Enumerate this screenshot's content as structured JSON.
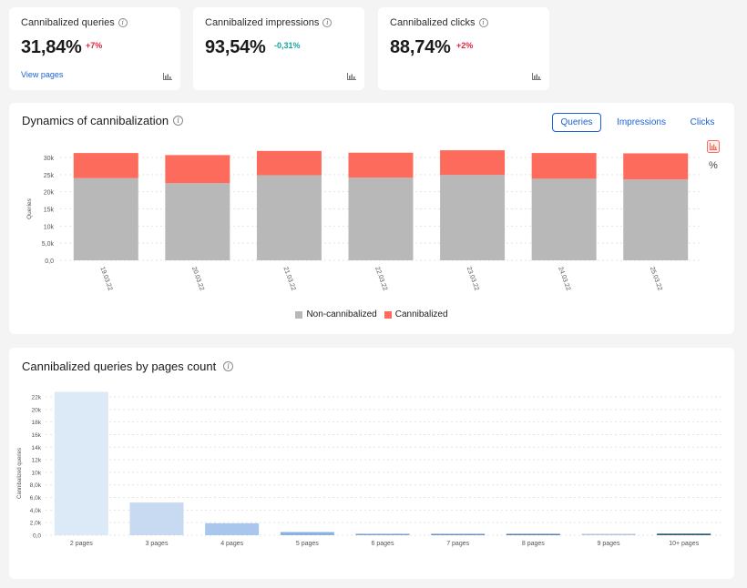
{
  "kpis": [
    {
      "title": "Cannibalized queries",
      "value": "31,84%",
      "delta": "+7%",
      "delta_dir": "up",
      "link": "View pages"
    },
    {
      "title": "Cannibalized impressions",
      "value": "93,54%",
      "delta": "-0,31%",
      "delta_dir": "down"
    },
    {
      "title": "Cannibalized clicks",
      "value": "88,74%",
      "delta": "+2%",
      "delta_dir": "up"
    }
  ],
  "dynamics": {
    "title": "Dynamics of cannibalization",
    "tabs": [
      "Queries",
      "Impressions",
      "Clicks"
    ],
    "active_tab": "Queries",
    "percent_label": "%",
    "legend": [
      "Non-cannibalized",
      "Cannibalized"
    ]
  },
  "pages_count": {
    "title": "Cannibalized queries by pages count"
  },
  "colors": {
    "non_cannibalized": "#b8b8b8",
    "cannibalized": "#fd6b5c",
    "accent": "#1a61d8"
  },
  "chart_data": [
    {
      "type": "bar",
      "stacked": true,
      "title": "Dynamics of cannibalization",
      "ylabel": "Queries",
      "ylim": [
        0,
        30000
      ],
      "yticks": [
        0,
        5000,
        10000,
        15000,
        20000,
        25000,
        30000
      ],
      "ytick_labels": [
        "0,0",
        "5,0k",
        "10k",
        "15k",
        "20k",
        "25k",
        "30k"
      ],
      "categories": [
        "19.03.22",
        "20.03.22",
        "21.03.22",
        "22.03.22",
        "23.03.22",
        "24.03.22",
        "25.03.22"
      ],
      "series": [
        {
          "name": "Non-cannibalized",
          "values": [
            24000,
            22500,
            24800,
            24100,
            24900,
            23800,
            23600
          ]
        },
        {
          "name": "Cannibalized",
          "values": [
            7300,
            8200,
            7100,
            7300,
            7200,
            7500,
            7600
          ]
        }
      ]
    },
    {
      "type": "bar",
      "title": "Cannibalized queries by pages count",
      "ylabel": "Cannibalized queries",
      "ylim": [
        0,
        22000
      ],
      "yticks": [
        0,
        2000,
        4000,
        6000,
        8000,
        10000,
        12000,
        14000,
        16000,
        18000,
        20000,
        22000
      ],
      "ytick_labels": [
        "0,0",
        "2,0k",
        "4,0k",
        "6,0k",
        "8,0k",
        "10k",
        "12k",
        "14k",
        "16k",
        "18k",
        "20k",
        "22k"
      ],
      "categories": [
        "2 pages",
        "3 pages",
        "4 pages",
        "5 pages",
        "6 pages",
        "7 pages",
        "8 pages",
        "9 pages",
        "10+ pages"
      ],
      "values": [
        22800,
        5200,
        1900,
        500,
        220,
        170,
        120,
        80,
        250
      ],
      "bar_colors": [
        "#dce9f7",
        "#c8daf2",
        "#a9c7ec",
        "#8cb2df",
        "#7ea2ce",
        "#6e93bc",
        "#5e83aa",
        "#b5c6d9",
        "#2f5f73"
      ]
    }
  ]
}
